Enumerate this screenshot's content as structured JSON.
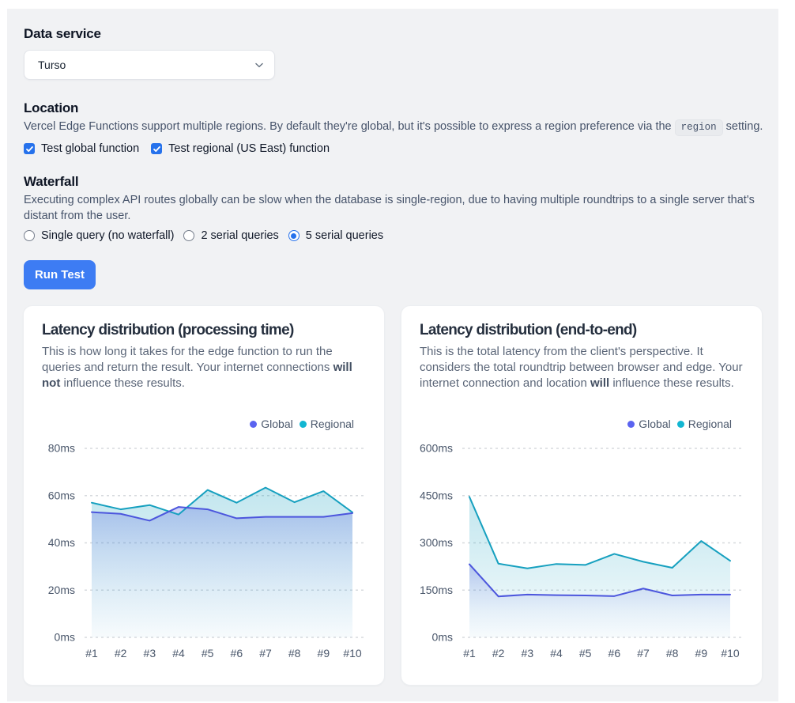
{
  "form": {
    "data_service": {
      "label": "Data service",
      "selected_option": "Turso"
    },
    "location": {
      "label": "Location",
      "description": "Vercel Edge Functions support multiple regions. By default they're global, but it's possible to express a region preference via the `region` setting.",
      "checkboxes": [
        {
          "label": "Test global function",
          "checked": true
        },
        {
          "label": "Test regional (US East) function",
          "checked": true
        }
      ]
    },
    "waterfall": {
      "label": "Waterfall",
      "description": "Executing complex API routes globally can be slow when the database is single-region, due to having multiple roundtrips to a single server that's\ndistant from the user.",
      "radios": [
        {
          "label": "Single query (no waterfall)",
          "selected": false
        },
        {
          "label": "2 serial queries",
          "selected": false
        },
        {
          "label": "5 serial queries",
          "selected": true
        }
      ]
    },
    "run_button": "Run Test"
  },
  "colors": {
    "accent_blue": "#2672ec",
    "button_blue": "#3d7df7",
    "global_line": "#4c56dd",
    "global_dot": "#5a63f0",
    "global_fill": "#4c56dd",
    "regional_line": "#16a0bf",
    "regional_dot": "#12b6d2",
    "regional_fill": "#16a0bf",
    "grid": "#d7dade",
    "axis_text": "#4a576b"
  },
  "chart_data": [
    {
      "type": "area",
      "title": "Latency distribution (processing time)",
      "description": "This is how long it takes for the edge function to run the\nqueries and return the result. Your internet connections **will**\n**not** influence these results.",
      "ylim": [
        0,
        80
      ],
      "y_ticks": [
        0,
        20,
        40,
        60,
        80
      ],
      "y_tick_labels": [
        "0ms",
        "20ms",
        "40ms",
        "60ms",
        "80ms"
      ],
      "categories": [
        "#1",
        "#2",
        "#3",
        "#4",
        "#5",
        "#6",
        "#7",
        "#8",
        "#9",
        "#10"
      ],
      "legend_position": "top-right",
      "grid": "dashed",
      "series": [
        {
          "name": "Global",
          "values": [
            53,
            52.3,
            49.4,
            55.2,
            54.2,
            50.4,
            51,
            51,
            51,
            52.6
          ]
        },
        {
          "name": "Regional",
          "values": [
            57,
            54.2,
            56,
            52,
            62.4,
            57,
            63.4,
            57.2,
            61.9,
            52.9
          ]
        }
      ]
    },
    {
      "type": "area",
      "title": "Latency distribution (end-to-end)",
      "description": "This is the total latency from the client's perspective. It\nconsiders the total roundtrip between browser and edge. Your\ninternet connection and location **will** influence these results.",
      "ylim": [
        0,
        600
      ],
      "y_ticks": [
        0,
        150,
        300,
        450,
        600
      ],
      "y_tick_labels": [
        "0ms",
        "150ms",
        "300ms",
        "450ms",
        "600ms"
      ],
      "categories": [
        "#1",
        "#2",
        "#3",
        "#4",
        "#5",
        "#6",
        "#7",
        "#8",
        "#9",
        "#10"
      ],
      "legend_position": "top-right",
      "grid": "dashed",
      "series": [
        {
          "name": "Global",
          "values": [
            232,
            130,
            136,
            134,
            133,
            131,
            155,
            133,
            136,
            136
          ]
        },
        {
          "name": "Regional",
          "values": [
            446,
            234,
            219,
            233,
            230,
            265,
            240,
            221,
            306,
            243
          ]
        }
      ]
    }
  ]
}
